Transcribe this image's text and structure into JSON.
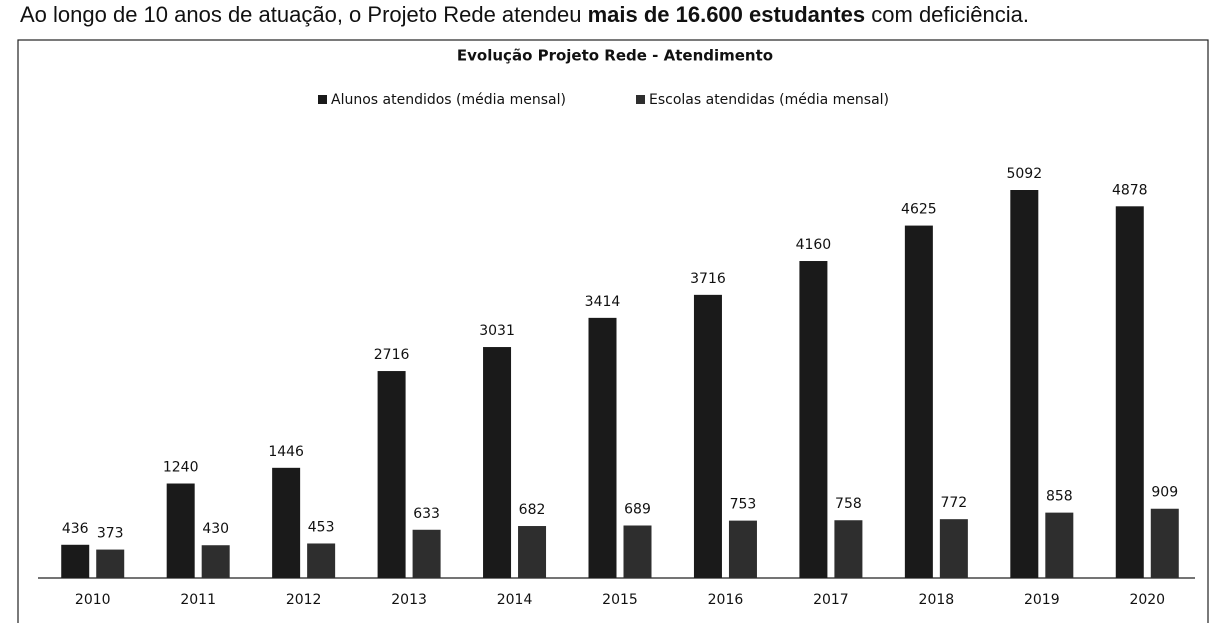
{
  "caption": {
    "before": "Ao longo de 10 anos de atuação, o Projeto Rede atendeu ",
    "bold": "mais de 16.600 estudantes",
    "after": " com deficiência."
  },
  "chart_data": {
    "type": "bar",
    "title": "Evolução Projeto Rede - Atendimento",
    "categories": [
      "2010",
      "2011",
      "2012",
      "2013",
      "2014",
      "2015",
      "2016",
      "2017",
      "2018",
      "2019",
      "2020"
    ],
    "series": [
      {
        "name": "Alunos atendidos (média mensal)",
        "color": "#1a1a1a",
        "values": [
          436,
          1240,
          1446,
          2716,
          3031,
          3414,
          3716,
          4160,
          4625,
          5092,
          4878
        ]
      },
      {
        "name": "Escolas atendidas (média mensal)",
        "color": "#2e2e2e",
        "values": [
          373,
          430,
          453,
          633,
          682,
          689,
          753,
          758,
          772,
          858,
          909
        ]
      }
    ],
    "legend": "top"
  }
}
